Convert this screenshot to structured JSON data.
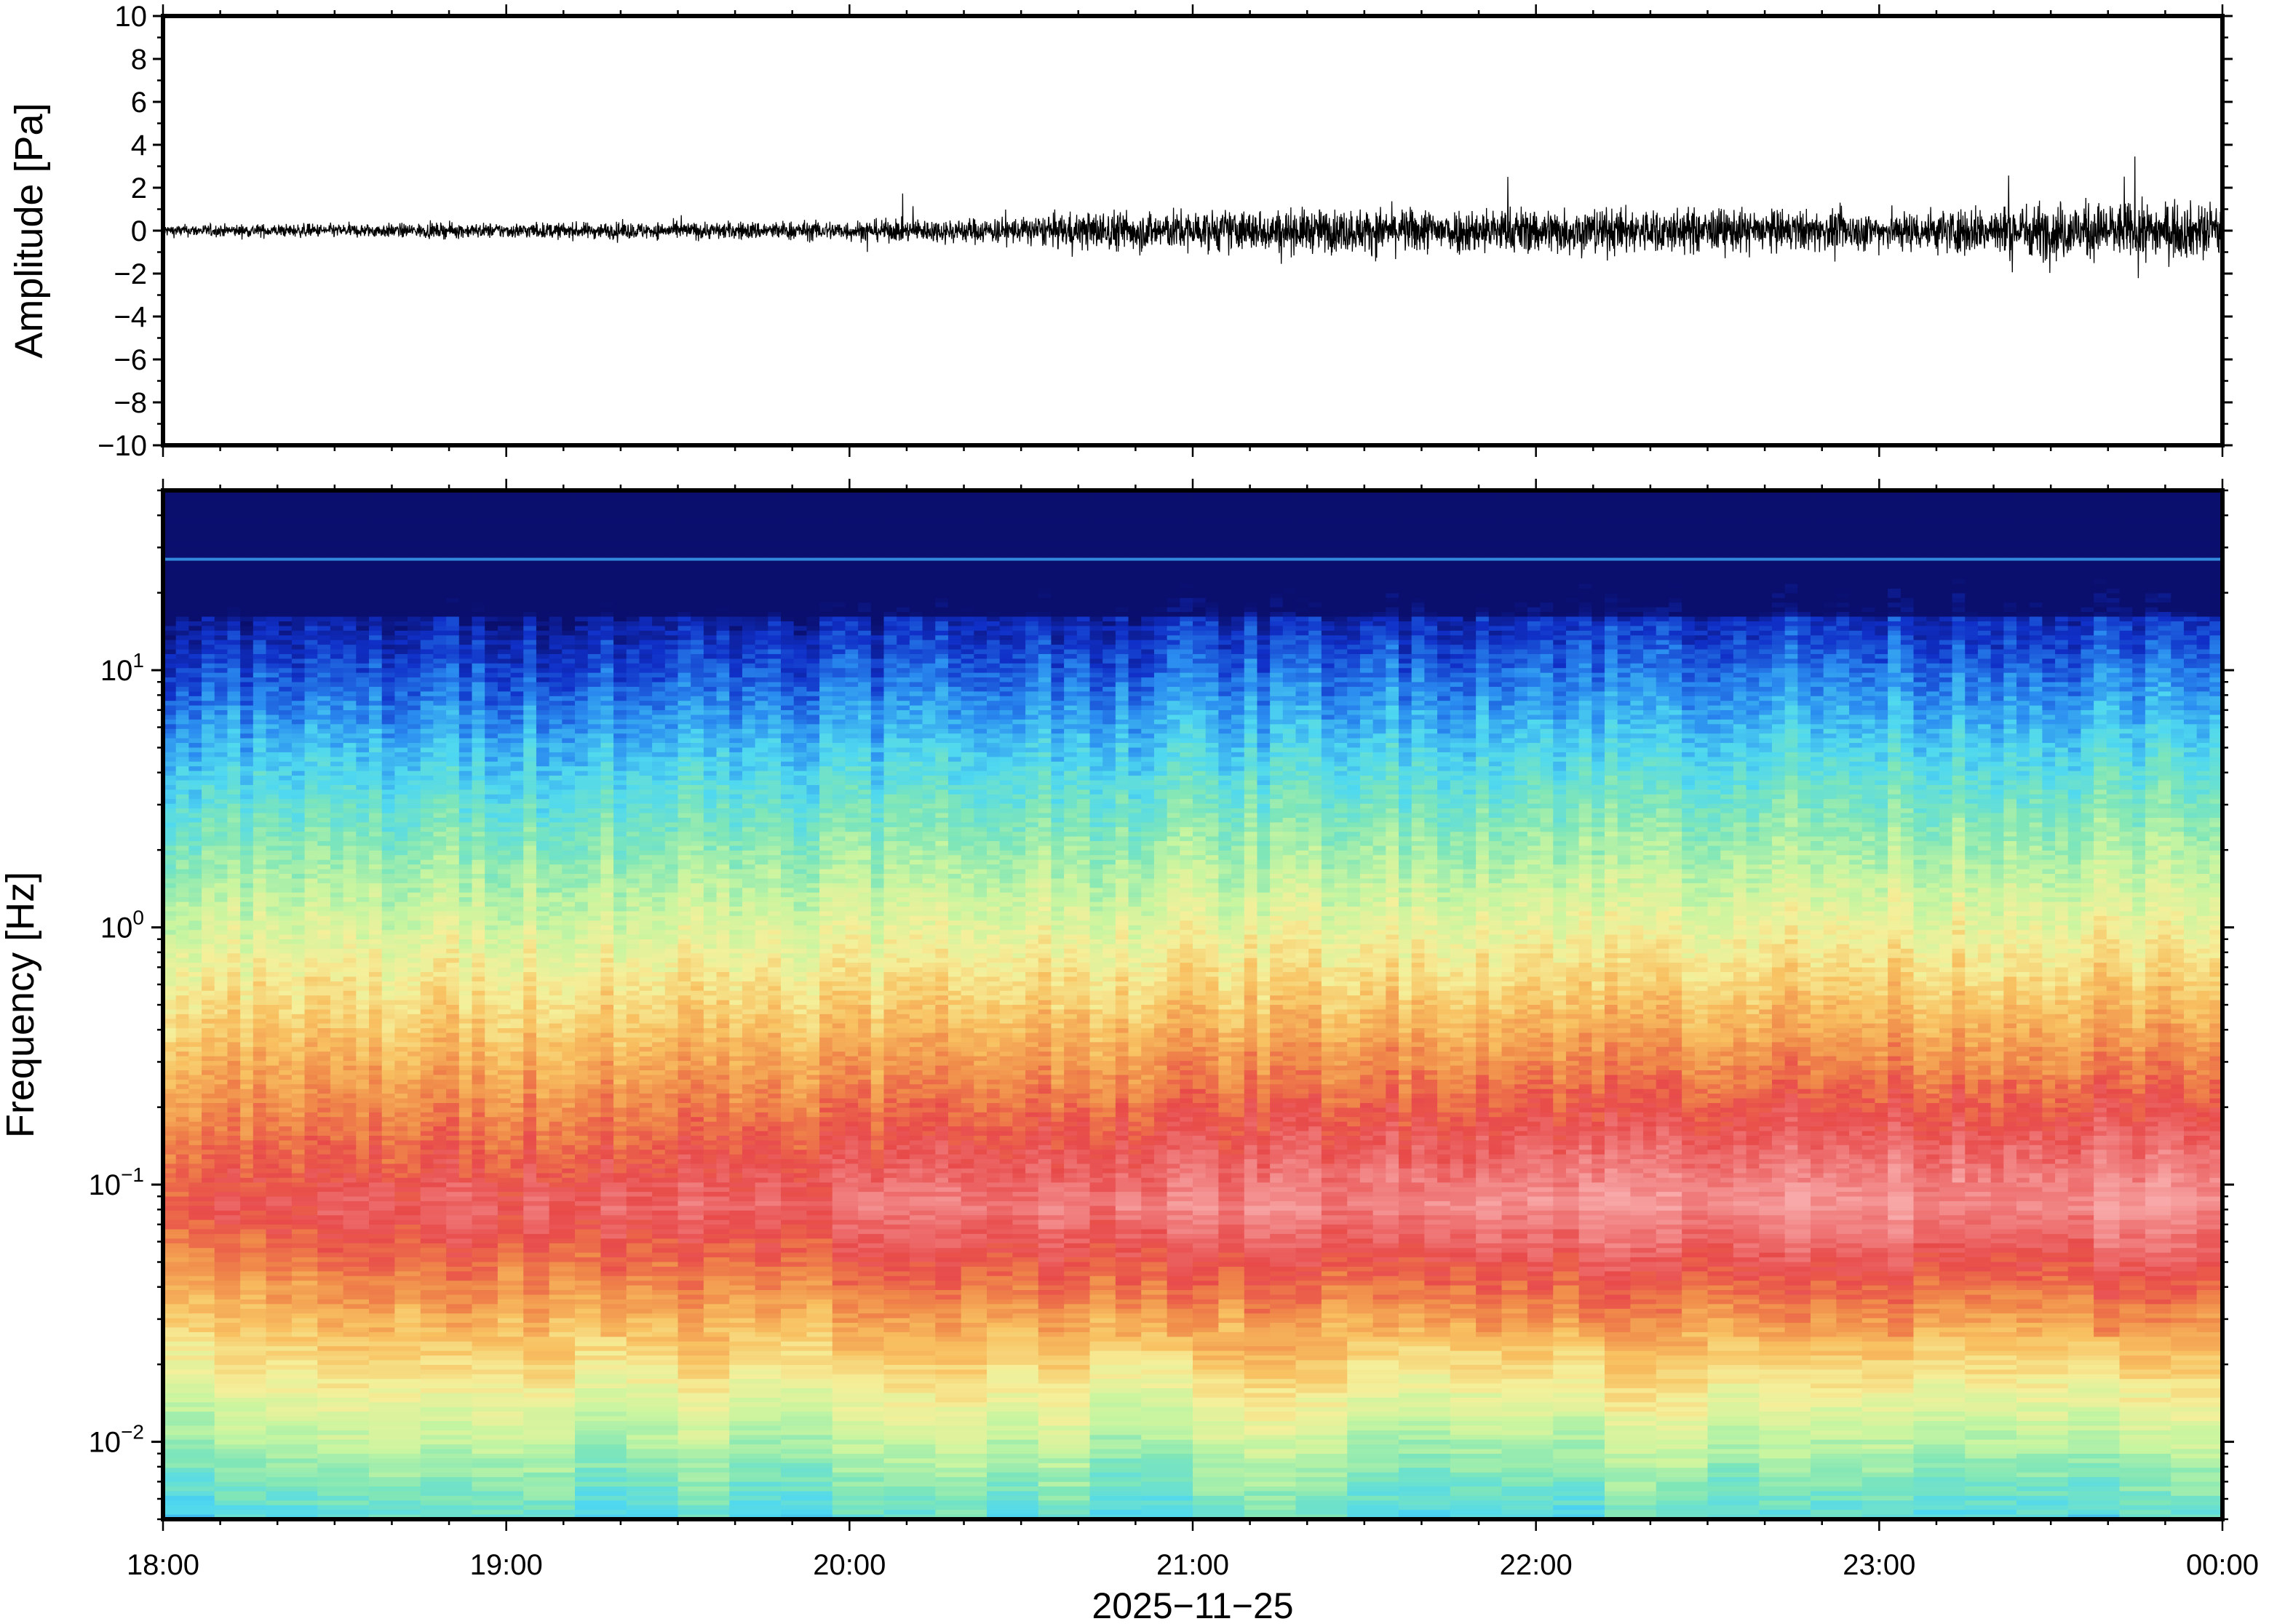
{
  "chart_data": [
    {
      "type": "line",
      "ylabel": "Amplitude [Pa]",
      "ylim": [
        -10,
        10
      ],
      "yticks": [
        "10",
        "8",
        "6",
        "4",
        "2",
        "0",
        "−2",
        "−4",
        "−6",
        "−8",
        "−10"
      ],
      "ytick_values": [
        10,
        8,
        6,
        4,
        2,
        0,
        -2,
        -4,
        -6,
        -8,
        -10
      ],
      "xlim": [
        "18:00",
        "00:00"
      ],
      "series": [
        {
          "line_color": "#000000",
          "envelope_hours": [
            0,
            0.5,
            1,
            1.5,
            2,
            2.5,
            2.75,
            3,
            3.5,
            4,
            4.5,
            5,
            5.5,
            6
          ],
          "envelope_amplitude_pa": [
            0.35,
            0.4,
            0.45,
            0.5,
            0.6,
            0.8,
            1.2,
            1.2,
            1.3,
            1.4,
            1.3,
            1.1,
            1.7,
            1.6
          ]
        }
      ],
      "grid": false
    },
    {
      "type": "heatmap",
      "ylabel": "Frequency [Hz]",
      "yscale": "log",
      "ylim": [
        0.005,
        50
      ],
      "yticks": [
        {
          "base": "10",
          "exp": "1",
          "value": 10
        },
        {
          "base": "10",
          "exp": "0",
          "value": 1
        },
        {
          "base": "10",
          "exp": "−1",
          "value": 0.1
        },
        {
          "base": "10",
          "exp": "−2",
          "value": 0.01
        }
      ],
      "xlabel": "2025−11−25",
      "xticks": [
        "18:00",
        "19:00",
        "20:00",
        "21:00",
        "22:00",
        "23:00",
        "00:00"
      ],
      "colormap": "jet",
      "colormap_stops": [
        "#0a0f6e",
        "#1030c8",
        "#2a8cf0",
        "#4fd8f0",
        "#7fe6b8",
        "#c8f5a0",
        "#f5ef9a",
        "#f8c060",
        "#f08a4a",
        "#e84a4a",
        "#f07a7a",
        "#f8a8a8"
      ],
      "spectral_notes": {
        "narrow_line_hz": 27,
        "microseism_peak_hz": 0.08
      }
    }
  ]
}
